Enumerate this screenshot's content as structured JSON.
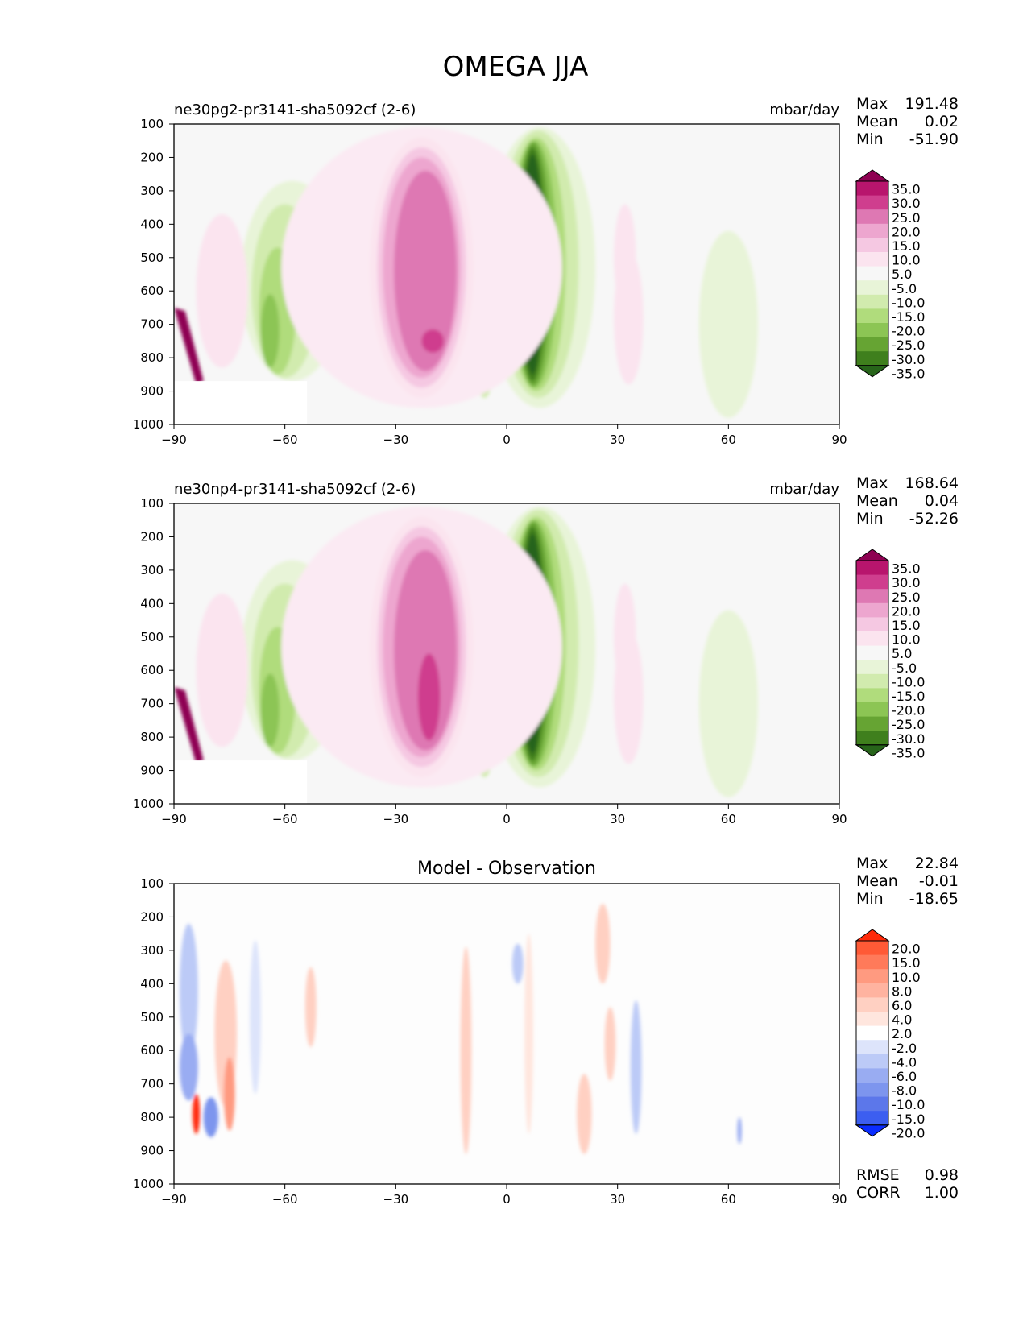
{
  "figure_title": "OMEGA JJA",
  "chart_data": [
    {
      "type": "contour",
      "title": "ne30pg2-pr3141-sha5092cf (2-6)",
      "units": "mbar/day",
      "xlim": [
        -90,
        90
      ],
      "ylim": [
        1000,
        100
      ],
      "xticks": [
        "−90",
        "−60",
        "−30",
        "0",
        "30",
        "60",
        "90"
      ],
      "yticks": [
        "100",
        "200",
        "300",
        "400",
        "500",
        "600",
        "700",
        "800",
        "900",
        "1000"
      ],
      "stats": {
        "labels": [
          "Max",
          "Mean",
          "Min"
        ],
        "values": [
          "191.48",
          "0.02",
          "-51.90"
        ]
      },
      "colorbar": {
        "labels": [
          "35.0",
          "30.0",
          "25.0",
          "20.0",
          "15.0",
          "10.0",
          "5.0",
          "-5.0",
          "-10.0",
          "-15.0",
          "-20.0",
          "-25.0",
          "-30.0",
          "-35.0"
        ],
        "colors": [
          "#8e0152",
          "#b8156d",
          "#cf3e8e",
          "#de78b3",
          "#eda6cf",
          "#f5c8e2",
          "#fbe4ef",
          "#f7f7f7",
          "#e8f4d8",
          "#d1ebae",
          "#b0dc7c",
          "#8cc554",
          "#66a433",
          "#3f7f1d",
          "#27641a"
        ]
      },
      "features": [
        {
          "name": "pink-cell-south",
          "level": 25,
          "color": "#de78b3"
        },
        {
          "name": "green-updraft-equator",
          "level": -35,
          "color": "#27641a"
        },
        {
          "name": "green-band-60s",
          "level": -20,
          "color": "#b0dc7c"
        }
      ]
    },
    {
      "type": "contour",
      "title": "ne30np4-pr3141-sha5092cf (2-6)",
      "units": "mbar/day",
      "xlim": [
        -90,
        90
      ],
      "ylim": [
        1000,
        100
      ],
      "xticks": [
        "−90",
        "−60",
        "−30",
        "0",
        "30",
        "60",
        "90"
      ],
      "yticks": [
        "100",
        "200",
        "300",
        "400",
        "500",
        "600",
        "700",
        "800",
        "900",
        "1000"
      ],
      "stats": {
        "labels": [
          "Max",
          "Mean",
          "Min"
        ],
        "values": [
          "168.64",
          "0.04",
          "-52.26"
        ]
      },
      "colorbar": {
        "labels": [
          "35.0",
          "30.0",
          "25.0",
          "20.0",
          "15.0",
          "10.0",
          "5.0",
          "-5.0",
          "-10.0",
          "-15.0",
          "-20.0",
          "-25.0",
          "-30.0",
          "-35.0"
        ],
        "colors": [
          "#8e0152",
          "#b8156d",
          "#cf3e8e",
          "#de78b3",
          "#eda6cf",
          "#f5c8e2",
          "#fbe4ef",
          "#f7f7f7",
          "#e8f4d8",
          "#d1ebae",
          "#b0dc7c",
          "#8cc554",
          "#66a433",
          "#3f7f1d",
          "#27641a"
        ]
      },
      "features": [
        {
          "name": "pink-cell-south",
          "level": 25,
          "color": "#de78b3"
        },
        {
          "name": "green-updraft-equator",
          "level": -35,
          "color": "#27641a"
        },
        {
          "name": "green-band-60s",
          "level": -20,
          "color": "#b0dc7c"
        }
      ]
    },
    {
      "type": "contour",
      "title": "Model - Observation",
      "units": "",
      "xlim": [
        -90,
        90
      ],
      "ylim": [
        1000,
        100
      ],
      "xticks": [
        "−90",
        "−60",
        "−30",
        "0",
        "30",
        "60",
        "90"
      ],
      "yticks": [
        "100",
        "200",
        "300",
        "400",
        "500",
        "600",
        "700",
        "800",
        "900",
        "1000"
      ],
      "stats": {
        "labels": [
          "Max",
          "Mean",
          "Min"
        ],
        "values": [
          "22.84",
          "-0.01",
          "-18.65"
        ]
      },
      "extra_stats": {
        "labels": [
          "RMSE",
          "CORR"
        ],
        "values": [
          "0.98",
          "1.00"
        ]
      },
      "colorbar": {
        "labels": [
          "20.0",
          "15.0",
          "10.0",
          "8.0",
          "6.0",
          "4.0",
          "2.0",
          "-2.0",
          "-4.0",
          "-6.0",
          "-8.0",
          "-10.0",
          "-15.0",
          "-20.0"
        ],
        "colors": [
          "#ff2a0a",
          "#ff5a36",
          "#ff7a5a",
          "#ff9a80",
          "#ffb3a0",
          "#ffd0c2",
          "#ffe6de",
          "#ffffff",
          "#dde4fb",
          "#bccaf7",
          "#99acf2",
          "#7d95ee",
          "#5c77ea",
          "#3c5ef0",
          "#0a2cff"
        ]
      },
      "features": [
        {
          "name": "red-anomaly-south",
          "level": 10,
          "color": "#ff7a5a"
        },
        {
          "name": "blue-anomaly-south",
          "level": -8,
          "color": "#99acf2"
        }
      ]
    }
  ]
}
